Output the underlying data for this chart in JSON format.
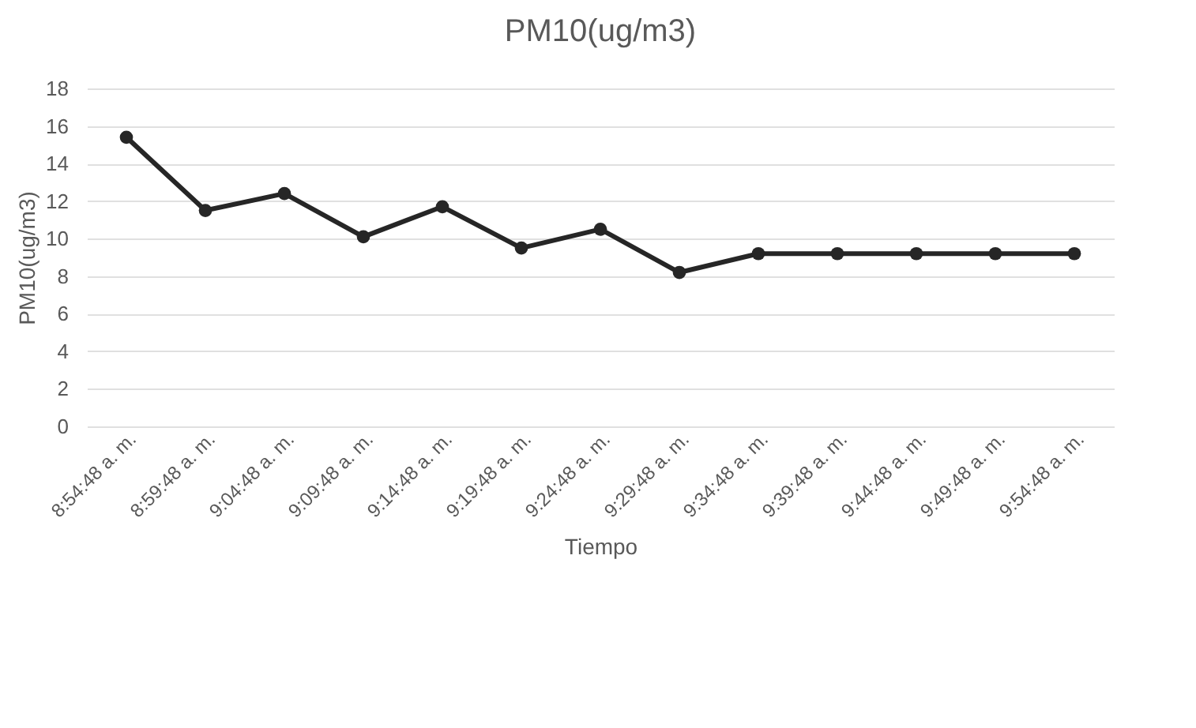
{
  "chart_data": {
    "type": "line",
    "title": "PM10(ug/m3)",
    "xlabel": "Tiempo",
    "ylabel": "PM10(ug/m3)",
    "categories": [
      "8:54:48 a. m.",
      "8:59:48 a. m.",
      "9:04:48 a. m.",
      "9:09:48 a. m.",
      "9:14:48 a. m.",
      "9:19:48 a. m.",
      "9:24:48 a. m.",
      "9:29:48 a. m.",
      "9:34:48 a. m.",
      "9:39:48 a. m.",
      "9:44:48 a. m.",
      "9:49:48 a. m.",
      "9:54:48 a. m."
    ],
    "series": [
      {
        "color": "#262626",
        "values": [
          15.4,
          11.5,
          12.4,
          10.1,
          11.7,
          9.5,
          10.5,
          8.2,
          9.2,
          9.2,
          9.2,
          9.2,
          9.2
        ]
      }
    ],
    "ylim": [
      0,
      18
    ],
    "yticks": [
      0,
      2,
      4,
      6,
      8,
      10,
      12,
      14,
      16,
      18
    ],
    "grid": "y",
    "marker": "circle",
    "line_style": "solid"
  }
}
